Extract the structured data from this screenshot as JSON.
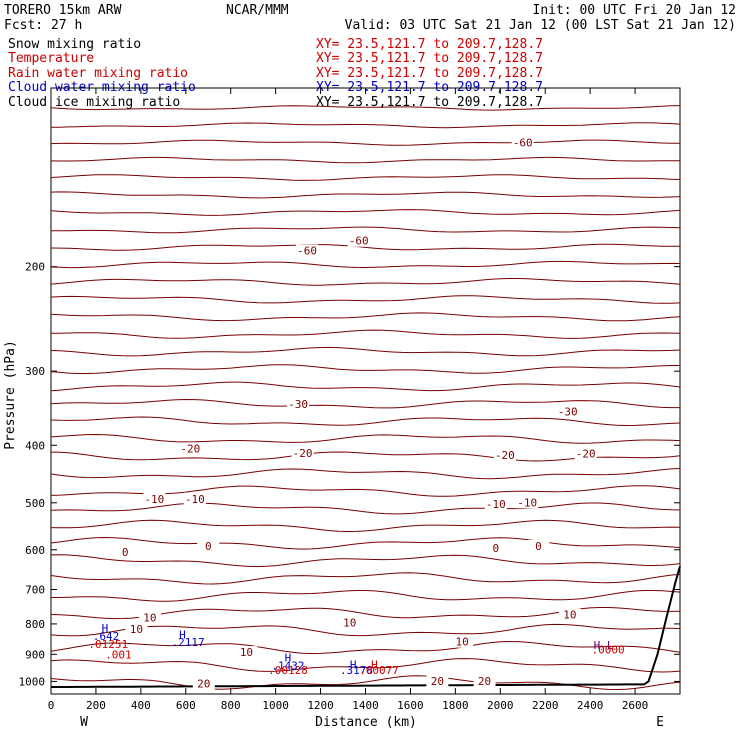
{
  "header": {
    "model": "TORERO  15km ARW",
    "center": "NCAR/MMM",
    "init": "Init: 00 UTC Fri 20 Jan 12",
    "fcst": "Fcst:    27 h",
    "valid": "Valid: 03 UTC Sat 21 Jan 12 (00 LST Sat 21 Jan 12)"
  },
  "fields": [
    {
      "name": "Snow mixing ratio",
      "xy": "",
      "color": "#000000"
    },
    {
      "name": "Temperature",
      "xy": "XY=  23.5,121.7 to 209.7,128.7",
      "color": "#cc0000"
    },
    {
      "name": "Rain water mixing ratio",
      "xy": "XY=  23.5,121.7 to 209.7,128.7",
      "color": "#cc0000"
    },
    {
      "name": "Cloud water mixing ratio",
      "xy": "XY=  23.5,121.7 to 209.7,128.7",
      "color": "#0000cc"
    },
    {
      "name": "Cloud ice mixing ratio",
      "xy": "XY=  23.5,121.7 to 209.7,128.7",
      "color": "#000000"
    }
  ],
  "snow_xy": "XY=  23.5,121.7 to 209.7,128.7",
  "chart_data": {
    "type": "line",
    "xlabel": "Distance (km)",
    "ylabel": "Pressure (hPa)",
    "xlim": [
      0,
      2800
    ],
    "ylim": [
      1050,
      100
    ],
    "y_scale": "log",
    "x_ticks": [
      0,
      200,
      400,
      600,
      800,
      1000,
      1200,
      1400,
      1600,
      1800,
      2000,
      2200,
      2400,
      2600
    ],
    "y_ticks": [
      200,
      300,
      400,
      500,
      600,
      700,
      800,
      900,
      1000
    ],
    "x_end_labels": [
      "W",
      "E"
    ],
    "grid": false,
    "isotherm_spacing_c": 2.5,
    "colors": {
      "temperature": "#7a0000",
      "cloud_water": "#0000cc",
      "rain": "#cc0000",
      "terrain": "#000000"
    },
    "contour_labels": [
      {
        "text": "-60",
        "x": 2100,
        "p": 125
      },
      {
        "text": "-60",
        "x": 1140,
        "p": 190
      },
      {
        "text": "-60",
        "x": 1370,
        "p": 183
      },
      {
        "text": "-30",
        "x": 1100,
        "p": 345
      },
      {
        "text": "-30",
        "x": 2300,
        "p": 355
      },
      {
        "text": "-20",
        "x": 620,
        "p": 410
      },
      {
        "text": "-20",
        "x": 1120,
        "p": 417
      },
      {
        "text": "-20",
        "x": 2020,
        "p": 420
      },
      {
        "text": "-20",
        "x": 2380,
        "p": 418
      },
      {
        "text": "-10",
        "x": 460,
        "p": 498
      },
      {
        "text": "-10",
        "x": 640,
        "p": 498
      },
      {
        "text": "-10",
        "x": 1980,
        "p": 508
      },
      {
        "text": "-10",
        "x": 2120,
        "p": 505
      },
      {
        "text": "0",
        "x": 700,
        "p": 598
      },
      {
        "text": "0",
        "x": 330,
        "p": 612
      },
      {
        "text": "0",
        "x": 1980,
        "p": 603
      },
      {
        "text": "0",
        "x": 2170,
        "p": 598
      },
      {
        "text": "10",
        "x": 440,
        "p": 790
      },
      {
        "text": "10",
        "x": 380,
        "p": 825
      },
      {
        "text": "10",
        "x": 1330,
        "p": 805
      },
      {
        "text": "10",
        "x": 2310,
        "p": 781
      },
      {
        "text": "10",
        "x": 1830,
        "p": 867
      },
      {
        "text": "10",
        "x": 870,
        "p": 903
      },
      {
        "text": "20",
        "x": 680,
        "p": 1020
      },
      {
        "text": "20",
        "x": 1720,
        "p": 1010
      },
      {
        "text": "20",
        "x": 1930,
        "p": 1010
      }
    ],
    "features": [
      {
        "text": "H",
        "x": 240,
        "p": 825,
        "color": "#0000cc"
      },
      {
        "text": ".642",
        "x": 245,
        "p": 851,
        "color": "#0000cc"
      },
      {
        "text": ".01251",
        "x": 255,
        "p": 879,
        "color": "#cc0000"
      },
      {
        "text": ".001",
        "x": 300,
        "p": 915,
        "color": "#cc0000"
      },
      {
        "text": "H",
        "x": 585,
        "p": 846,
        "color": "#0000cc"
      },
      {
        "text": ".2117",
        "x": 610,
        "p": 872,
        "color": "#0000cc"
      },
      {
        "text": "H",
        "x": 1055,
        "p": 925,
        "color": "#0000cc"
      },
      {
        "text": ".1432",
        "x": 1055,
        "p": 954,
        "color": "#0000cc"
      },
      {
        "text": ".00128",
        "x": 1055,
        "p": 971,
        "color": "#cc0000"
      },
      {
        "text": "H",
        "x": 1345,
        "p": 951,
        "color": "#0000cc"
      },
      {
        "text": "H",
        "x": 1440,
        "p": 951,
        "color": "#cc0000"
      },
      {
        "text": ".3178",
        "x": 1360,
        "p": 971,
        "color": "#0000cc"
      },
      {
        "text": ".00077",
        "x": 1460,
        "p": 971,
        "color": "#cc0000"
      },
      {
        "text": "H L",
        "x": 2460,
        "p": 881,
        "color": "#660066"
      },
      {
        "text": ".0000",
        "x": 2480,
        "p": 898,
        "color": "#cc0000"
      }
    ]
  }
}
